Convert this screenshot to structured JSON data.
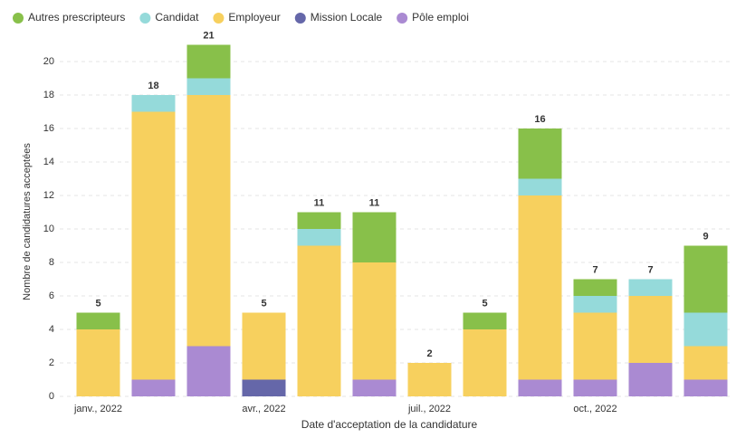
{
  "chart_data": {
    "type": "stacked_bar",
    "xlabel": "Date d'acceptation de la candidature",
    "ylabel": "Nombre de candidatures acceptées",
    "categories": [
      "janv., 2022",
      null,
      null,
      "avr., 2022",
      null,
      null,
      "juil., 2022",
      null,
      null,
      "oct., 2022",
      null,
      null
    ],
    "series": [
      {
        "name": "Autres prescripteurs",
        "color": "#88c04a",
        "values": [
          1,
          0,
          2,
          0,
          1,
          3,
          0,
          1,
          3,
          1,
          0,
          4
        ]
      },
      {
        "name": "Candidat",
        "color": "#95dada",
        "values": [
          0,
          1,
          1,
          0,
          1,
          0,
          0,
          0,
          1,
          1,
          1,
          2
        ]
      },
      {
        "name": "Employeur",
        "color": "#f7d05e",
        "values": [
          4,
          16,
          15,
          4,
          9,
          7,
          2,
          4,
          11,
          4,
          4,
          2
        ]
      },
      {
        "name": "Mission Locale",
        "color": "#6567a9",
        "values": [
          0,
          0,
          0,
          1,
          0,
          0,
          0,
          0,
          0,
          0,
          0,
          0
        ]
      },
      {
        "name": "Pôle emploi",
        "color": "#aa8ad2",
        "values": [
          0,
          1,
          3,
          0,
          0,
          1,
          0,
          0,
          1,
          1,
          2,
          1
        ]
      }
    ],
    "totals": [
      5,
      18,
      21,
      5,
      11,
      11,
      2,
      5,
      16,
      7,
      7,
      9
    ],
    "ylim": [
      0,
      22
    ],
    "yticks": [
      0,
      2,
      4,
      6,
      8,
      10,
      12,
      14,
      16,
      18,
      20
    ],
    "grid": true
  }
}
